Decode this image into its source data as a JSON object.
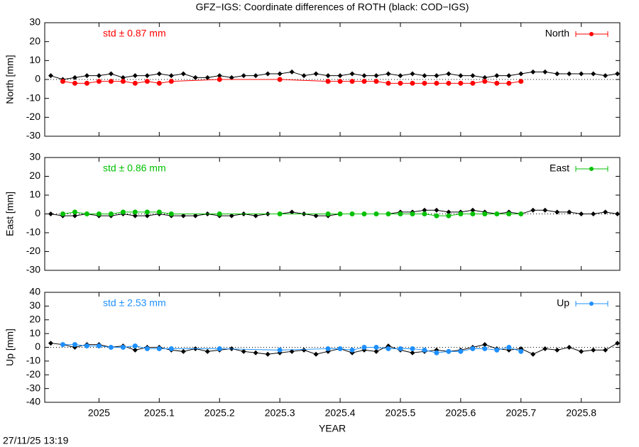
{
  "title": "GFZ−IGS: Coordinate differences of ROTH (black: COD−IGS)",
  "timestamp": "27/11/25 13:19",
  "chart_data": [
    {
      "type": "line",
      "ylabel": "North [mm]",
      "annotation": "std ± 0.87 mm",
      "xlim": [
        2024.91,
        2025.864
      ],
      "ylim": [
        -30,
        30
      ],
      "yticks": [
        -30,
        -20,
        -10,
        0,
        10,
        20,
        30
      ],
      "series": [
        {
          "color": "#000000",
          "x": [
            2024.92,
            2024.94,
            2024.96,
            2024.98,
            2025.0,
            2025.02,
            2025.04,
            2025.06,
            2025.08,
            2025.1,
            2025.12,
            2025.14,
            2025.16,
            2025.18,
            2025.2,
            2025.22,
            2025.24,
            2025.26,
            2025.28,
            2025.3,
            2025.32,
            2025.34,
            2025.36,
            2025.38,
            2025.4,
            2025.42,
            2025.44,
            2025.46,
            2025.48,
            2025.5,
            2025.52,
            2025.54,
            2025.56,
            2025.58,
            2025.6,
            2025.62,
            2025.64,
            2025.66,
            2025.68,
            2025.7,
            2025.72,
            2025.74,
            2025.76,
            2025.78,
            2025.8,
            2025.82,
            2025.84,
            2025.86
          ],
          "values": [
            2,
            0,
            1,
            2,
            2,
            3,
            1,
            2,
            2,
            3,
            2,
            3,
            1,
            1,
            2,
            1,
            2,
            2,
            3,
            3,
            4,
            2,
            3,
            2,
            2,
            3,
            2,
            2,
            3,
            2,
            3,
            2,
            2,
            3,
            2,
            2,
            1,
            2,
            2,
            3,
            4,
            4,
            3,
            3,
            3,
            3,
            2,
            3
          ]
        },
        {
          "name": "North",
          "color": "#ff0000",
          "x": [
            2024.94,
            2024.96,
            2024.98,
            2025.0,
            2025.02,
            2025.04,
            2025.06,
            2025.08,
            2025.1,
            2025.12,
            2025.2,
            2025.3,
            2025.38,
            2025.4,
            2025.42,
            2025.44,
            2025.46,
            2025.48,
            2025.5,
            2025.52,
            2025.54,
            2025.56,
            2025.58,
            2025.6,
            2025.62,
            2025.64,
            2025.66,
            2025.68,
            2025.7
          ],
          "values": [
            -1,
            -2,
            -2,
            -1,
            -1,
            -1,
            -2,
            -1,
            -2,
            -1,
            0,
            0,
            -1,
            -1,
            -1,
            -1,
            -1,
            -2,
            -2,
            -2,
            -2,
            -2,
            -2,
            -2,
            -2,
            -1,
            -2,
            -2,
            -1
          ]
        }
      ]
    },
    {
      "type": "line",
      "ylabel": "East [mm]",
      "annotation": "std ± 0.86 mm",
      "xlim": [
        2024.91,
        2025.864
      ],
      "ylim": [
        -30,
        30
      ],
      "yticks": [
        -30,
        -20,
        -10,
        0,
        10,
        20,
        30
      ],
      "series": [
        {
          "color": "#000000",
          "x": [
            2024.92,
            2024.94,
            2024.96,
            2024.98,
            2025.0,
            2025.02,
            2025.04,
            2025.06,
            2025.08,
            2025.1,
            2025.12,
            2025.14,
            2025.16,
            2025.18,
            2025.2,
            2025.22,
            2025.24,
            2025.26,
            2025.28,
            2025.3,
            2025.32,
            2025.34,
            2025.36,
            2025.38,
            2025.4,
            2025.42,
            2025.44,
            2025.46,
            2025.48,
            2025.5,
            2025.52,
            2025.54,
            2025.56,
            2025.58,
            2025.6,
            2025.62,
            2025.64,
            2025.66,
            2025.68,
            2025.7,
            2025.72,
            2025.74,
            2025.76,
            2025.78,
            2025.8,
            2025.82,
            2025.84,
            2025.86
          ],
          "values": [
            0,
            -1,
            -1,
            0,
            -1,
            -1,
            0,
            -1,
            -1,
            0,
            -1,
            -1,
            -1,
            0,
            -1,
            -1,
            0,
            -1,
            0,
            0,
            1,
            0,
            -1,
            -1,
            0,
            0,
            0,
            0,
            0,
            1,
            1,
            2,
            2,
            1,
            1,
            2,
            1,
            0,
            1,
            0,
            2,
            2,
            1,
            1,
            0,
            0,
            1,
            0
          ]
        },
        {
          "name": "East",
          "color": "#00c000",
          "x": [
            2024.94,
            2024.96,
            2024.98,
            2025.0,
            2025.02,
            2025.04,
            2025.06,
            2025.08,
            2025.1,
            2025.12,
            2025.2,
            2025.3,
            2025.38,
            2025.4,
            2025.42,
            2025.44,
            2025.46,
            2025.48,
            2025.5,
            2025.52,
            2025.54,
            2025.56,
            2025.58,
            2025.6,
            2025.62,
            2025.64,
            2025.66,
            2025.68,
            2025.7
          ],
          "values": [
            0,
            1,
            0,
            0,
            0,
            1,
            1,
            1,
            1,
            0,
            0,
            0,
            0,
            0,
            0,
            0,
            0,
            0,
            0,
            0,
            0,
            -1,
            -1,
            0,
            0,
            0,
            0,
            0,
            0
          ]
        }
      ]
    },
    {
      "type": "line",
      "ylabel": "Up [mm]",
      "xlabel": "YEAR",
      "annotation": "std ± 2.53 mm",
      "xlim": [
        2024.91,
        2025.864
      ],
      "ylim": [
        -40,
        40
      ],
      "yticks": [
        -40,
        -30,
        -20,
        -10,
        0,
        10,
        20,
        30,
        40
      ],
      "xticks": [
        2025,
        2025.1,
        2025.2,
        2025.3,
        2025.4,
        2025.5,
        2025.6,
        2025.7,
        2025.8
      ],
      "series": [
        {
          "color": "#000000",
          "x": [
            2024.92,
            2024.94,
            2024.96,
            2024.98,
            2025.0,
            2025.02,
            2025.04,
            2025.06,
            2025.08,
            2025.1,
            2025.12,
            2025.14,
            2025.16,
            2025.18,
            2025.2,
            2025.22,
            2025.24,
            2025.26,
            2025.28,
            2025.3,
            2025.32,
            2025.34,
            2025.36,
            2025.38,
            2025.4,
            2025.42,
            2025.44,
            2025.46,
            2025.48,
            2025.5,
            2025.52,
            2025.54,
            2025.56,
            2025.58,
            2025.6,
            2025.62,
            2025.64,
            2025.66,
            2025.68,
            2025.7,
            2025.72,
            2025.74,
            2025.76,
            2025.78,
            2025.8,
            2025.82,
            2025.84,
            2025.86
          ],
          "values": [
            3,
            2,
            0,
            2,
            2,
            0,
            1,
            -2,
            0,
            0,
            -2,
            -3,
            -1,
            -3,
            -2,
            -1,
            -3,
            -4,
            -5,
            -4,
            -3,
            -2,
            -5,
            -3,
            -1,
            -4,
            -2,
            -3,
            1,
            -2,
            -4,
            -3,
            -2,
            -3,
            -2,
            0,
            2,
            -1,
            -2,
            -1,
            -5,
            -1,
            -2,
            0,
            -3,
            -2,
            -2,
            3
          ]
        },
        {
          "name": "Up",
          "color": "#1e90ff",
          "x": [
            2024.94,
            2024.96,
            2024.98,
            2025.0,
            2025.02,
            2025.04,
            2025.06,
            2025.08,
            2025.1,
            2025.12,
            2025.2,
            2025.3,
            2025.38,
            2025.4,
            2025.42,
            2025.44,
            2025.46,
            2025.48,
            2025.5,
            2025.52,
            2025.54,
            2025.56,
            2025.58,
            2025.6,
            2025.62,
            2025.64,
            2025.66,
            2025.68,
            2025.7
          ],
          "values": [
            2,
            2,
            1,
            1,
            0,
            0,
            1,
            -1,
            -1,
            -1,
            -1,
            -2,
            -1,
            -1,
            -2,
            0,
            0,
            -1,
            -1,
            -1,
            -2,
            -4,
            -3,
            -3,
            -1,
            -1,
            -2,
            0,
            -3
          ]
        }
      ]
    }
  ]
}
